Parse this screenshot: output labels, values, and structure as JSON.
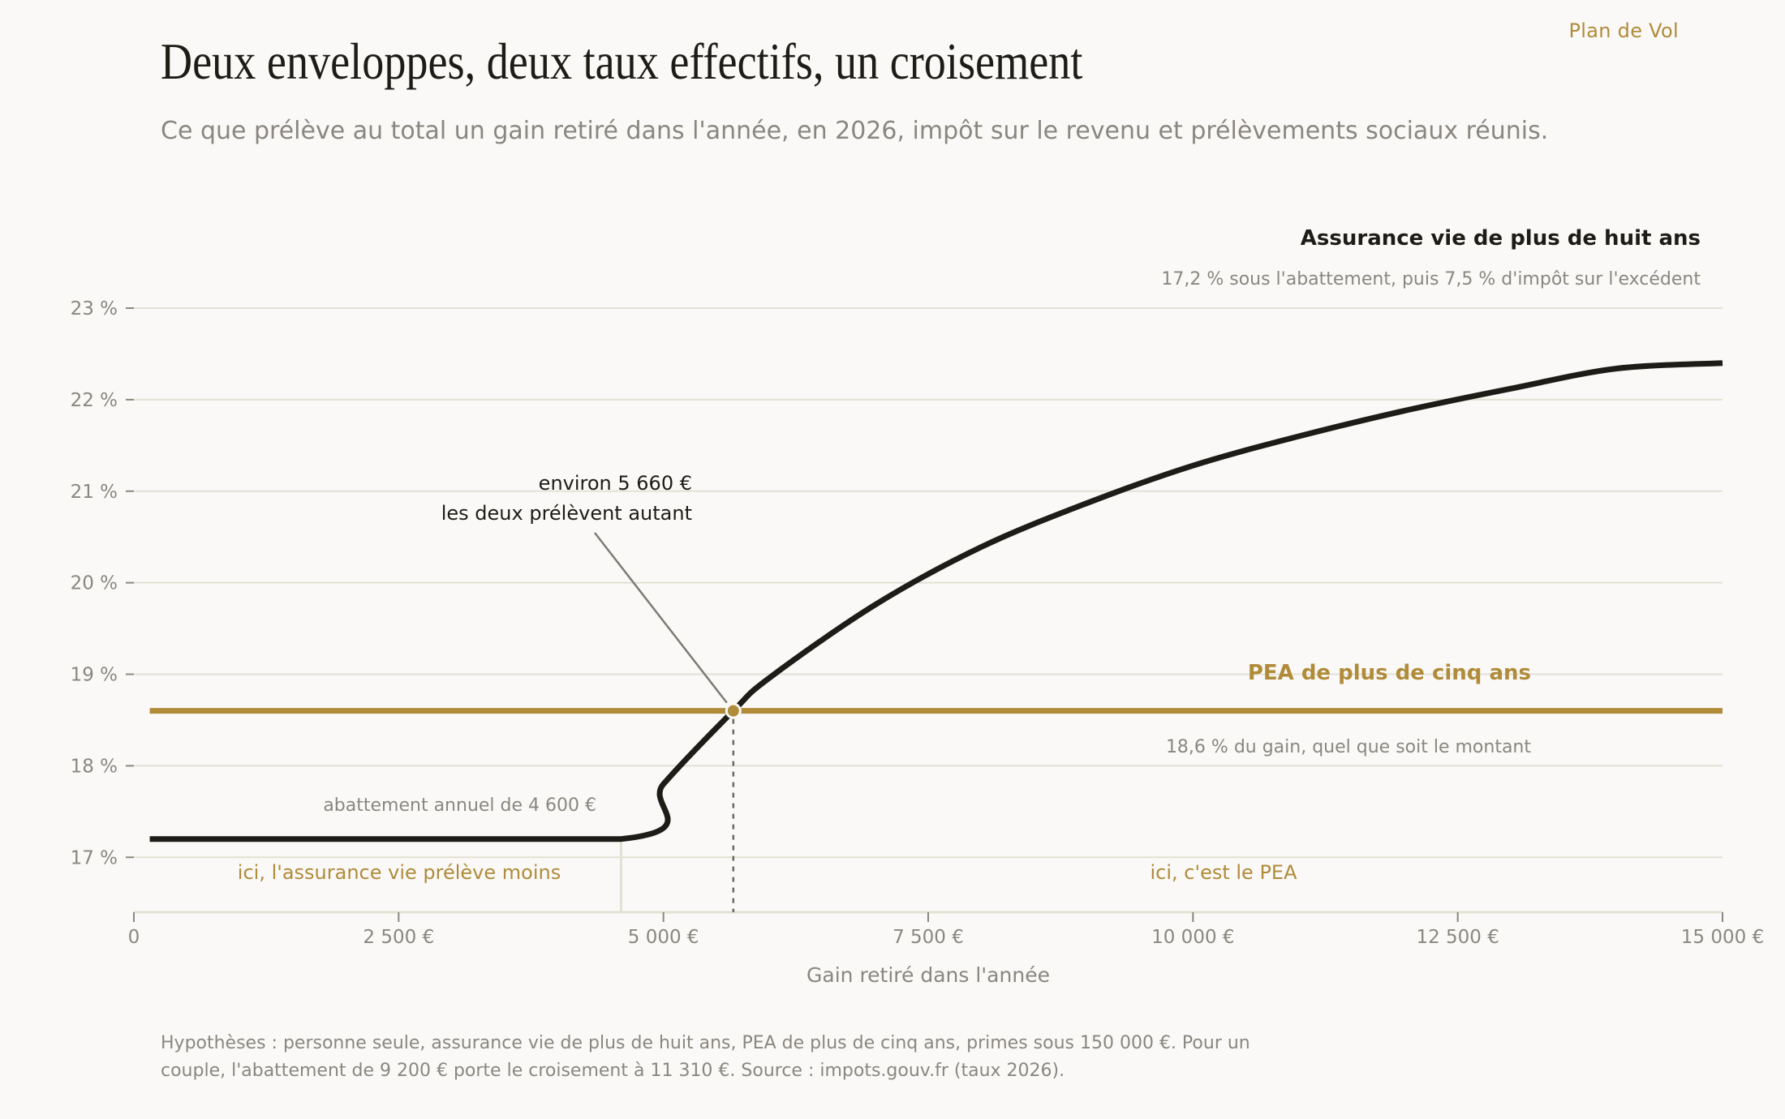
{
  "brand": "Plan de Vol",
  "title": "Deux enveloppes, deux taux effectifs, un croisement",
  "subtitle": "Ce que prélève au total un gain retiré dans l'année, en 2026, impôt sur le revenu et prélèvements sociaux réunis.",
  "footnote": "Hypothèses : personne seule, assurance vie de plus de huit ans, PEA de plus de cinq ans, primes sous 150 000 €. Pour un couple, l'abattement de 9 200 € porte le croisement à 11 310 €. Source : impots.gouv.fr (taux 2026).",
  "colors": {
    "background": "#faf9f7",
    "av_line": "#1e1c17",
    "pea_line": "#b08b3a",
    "grid": "#e3e1d4",
    "muted_text": "#8a8780"
  },
  "chart_data": {
    "type": "line",
    "xlabel": "Gain retiré dans l'année",
    "ylabel": "",
    "xlim": [
      0,
      15000
    ],
    "ylim": [
      16.4,
      23
    ],
    "grid": true,
    "x_ticks": [
      {
        "value": 0,
        "label": "0"
      },
      {
        "value": 2500,
        "label": "2 500 €"
      },
      {
        "value": 5000,
        "label": "5 000 €"
      },
      {
        "value": 7500,
        "label": "7 500 €"
      },
      {
        "value": 10000,
        "label": "10 000 €"
      },
      {
        "value": 12500,
        "label": "12 500 €"
      },
      {
        "value": 15000,
        "label": "15 000 €"
      }
    ],
    "y_ticks": [
      {
        "value": 17,
        "label": "17 %"
      },
      {
        "value": 18,
        "label": "18 %"
      },
      {
        "value": 19,
        "label": "19 %"
      },
      {
        "value": 20,
        "label": "20 %"
      },
      {
        "value": 21,
        "label": "21 %"
      },
      {
        "value": 22,
        "label": "22 %"
      },
      {
        "value": 23,
        "label": "23 %"
      }
    ],
    "series": [
      {
        "name": "Assurance vie de plus de huit ans",
        "description": "17,2 % sous l'abattement, puis 7,5 % d'impôt sur l'excédent",
        "x": [
          150,
          4600,
          5000,
          5660,
          6000,
          7000,
          8000,
          9000,
          10000,
          11000,
          12000,
          13000,
          14000,
          15000
        ],
        "y": [
          17.2,
          17.2,
          17.8,
          18.6,
          18.96,
          19.76,
          20.39,
          20.87,
          21.28,
          21.6,
          21.88,
          22.12,
          22.34,
          22.4
        ]
      },
      {
        "name": "PEA de plus de cinq ans",
        "description": "18,6 % du gain, quel que soit le montant",
        "x": [
          150,
          15000
        ],
        "y": [
          18.6,
          18.6
        ]
      }
    ],
    "annotations": {
      "threshold": {
        "x": 4600,
        "label": "abattement annuel de 4 600 €"
      },
      "crossover": {
        "x": 5660,
        "y": 18.6,
        "line1": "environ 5 660 €",
        "line2": "les deux prélèvent autant"
      },
      "zone_left": "ici, l'assurance vie prélève moins",
      "zone_right": "ici, c'est le PEA"
    }
  }
}
